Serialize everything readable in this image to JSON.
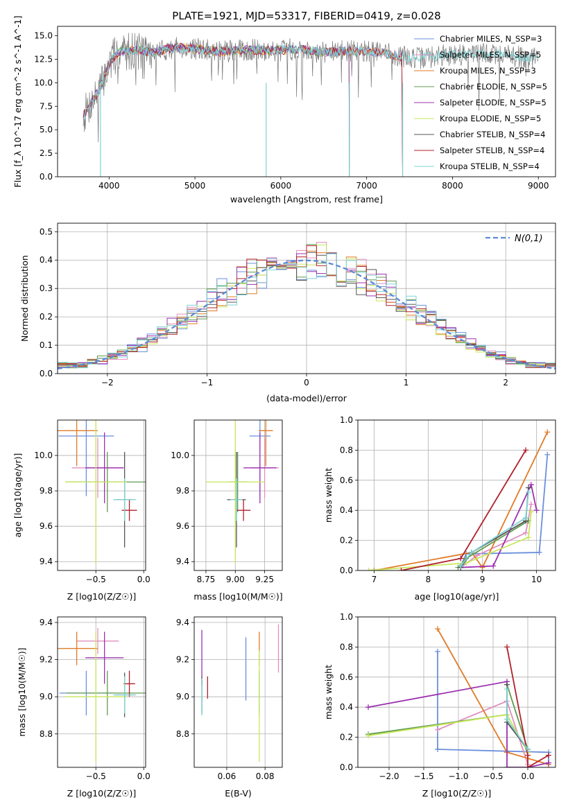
{
  "title": "PLATE=1921, MJD=53317, FIBERID=0419, z=0.028",
  "series_colors": [
    "#6a8fdc",
    "#e08fbf",
    "#e07a26",
    "#5f9a4f",
    "#9b30b0",
    "#c8e85a",
    "#555555",
    "#b0202a",
    "#7fd3d3"
  ],
  "legend_labels": [
    "Chabrier MILES, N_SSP=3",
    "Salpeter MILES, N_SSP=5",
    "Kroupa MILES, N_SSP=3",
    "Chabrier ELODIE, N_SSP=5",
    "Salpeter ELODIE, N_SSP=5",
    "Kroupa ELODIE, N_SSP=5",
    "Chabrier STELIB, N_SSP=4",
    "Salpeter STELIB, N_SSP=4",
    "Kroupa STELIB, N_SSP=4"
  ],
  "chart_data": [
    {
      "id": "spectrum",
      "type": "line",
      "xlabel": "wavelength [Angstrom, rest frame]",
      "ylabel": "Flux [f_λ 10^-17 erg cm^-2 s^-1 A^-1]",
      "xlim": [
        3400,
        9200
      ],
      "ylim": [
        0,
        16
      ],
      "xticks": [
        4000,
        5000,
        6000,
        7000,
        8000,
        9000
      ],
      "yticks": [
        0.0,
        2.5,
        5.0,
        7.5,
        10.0,
        12.5,
        15.0
      ],
      "legend_position": "top-right",
      "data_x": [
        3700,
        3800,
        3900,
        4000,
        4100,
        4300,
        4500,
        4800,
        5000,
        5300,
        5600,
        5900,
        6200,
        6500,
        6800,
        7000,
        7200,
        7400,
        7600,
        7800,
        8000,
        8300,
        8600,
        8800,
        9000
      ],
      "data_y": [
        6.5,
        8.0,
        9.5,
        12.0,
        13.2,
        13.5,
        13.2,
        13.8,
        13.6,
        13.3,
        13.5,
        13.4,
        13.6,
        13.2,
        13.4,
        13.3,
        13.2,
        12.8,
        12.6,
        12.8,
        13.0,
        13.1,
        13.0,
        12.7,
        12.6
      ],
      "model_end_wavelength": [
        7420,
        7420,
        7420,
        6800,
        6800,
        6800,
        9000,
        7420,
        9000
      ],
      "drop_lines": [
        3900,
        5830,
        6800,
        7420
      ]
    },
    {
      "id": "residuals",
      "type": "histogram",
      "xlabel": "(data-model)/error",
      "ylabel": "Normed distribution",
      "xlim": [
        -2.5,
        2.5
      ],
      "ylim": [
        0,
        0.53
      ],
      "xticks": [
        -2,
        -1,
        0,
        1,
        2
      ],
      "yticks": [
        0.0,
        0.1,
        0.2,
        0.3,
        0.4,
        0.5
      ],
      "bin_width": 0.1,
      "gaussian_label": "N(0,1)",
      "legend_position": "top-right"
    },
    {
      "id": "age_vs_Z",
      "type": "errorbar",
      "xlabel": "Z [log10(Z/Z☉)]",
      "ylabel": "age [log10(age/yr)]",
      "xlim": [
        -0.9,
        0.02
      ],
      "ylim": [
        9.35,
        10.2
      ],
      "xticks": [
        -0.5,
        0.0
      ],
      "yticks": [
        9.4,
        9.6,
        9.8,
        10.0
      ],
      "points": [
        {
          "x": -0.6,
          "y": 10.11,
          "xerr": 0.29,
          "yerr": 0.34
        },
        {
          "x": -0.48,
          "y": 9.93,
          "xerr": 0.27,
          "yerr": 0.17
        },
        {
          "x": -0.7,
          "y": 10.14,
          "xerr": 0.22,
          "yerr": 0.2
        },
        {
          "x": -0.38,
          "y": 9.85,
          "xerr": 0.44,
          "yerr": 0.17
        },
        {
          "x": -0.41,
          "y": 9.93,
          "xerr": 0.2,
          "yerr": 0.2
        },
        {
          "x": -0.5,
          "y": 9.85,
          "xerr": 0.32,
          "yerr": 0.46
        },
        {
          "x": -0.2,
          "y": 9.75,
          "xerr": 0.1,
          "yerr": 0.27
        },
        {
          "x": -0.15,
          "y": 9.69,
          "xerr": 0.08,
          "yerr": 0.06
        },
        {
          "x": -0.2,
          "y": 9.75,
          "xerr": 0.12,
          "yerr": 0.12
        }
      ]
    },
    {
      "id": "age_vs_mass",
      "type": "errorbar",
      "xlabel": "mass [log10(M/M☉)]",
      "ylabel": "",
      "xlim": [
        8.65,
        9.4
      ],
      "ylim": [
        9.35,
        10.2
      ],
      "xticks": [
        8.75,
        9.0,
        9.25
      ],
      "yticks": [
        9.4,
        9.6,
        9.8,
        10.0
      ],
      "points": [
        {
          "x": 9.21,
          "y": 10.11,
          "xerr": 0.09,
          "yerr": 0.34
        },
        {
          "x": 9.25,
          "y": 9.93,
          "xerr": 0.12,
          "yerr": 0.17
        },
        {
          "x": 9.26,
          "y": 10.14,
          "xerr": 0.06,
          "yerr": 0.2
        },
        {
          "x": 9.02,
          "y": 9.85,
          "xerr": 0.08,
          "yerr": 0.17
        },
        {
          "x": 9.21,
          "y": 9.93,
          "xerr": 0.14,
          "yerr": 0.2
        },
        {
          "x": 9.0,
          "y": 9.85,
          "xerr": 0.25,
          "yerr": 0.46
        },
        {
          "x": 9.01,
          "y": 9.75,
          "xerr": 0.08,
          "yerr": 0.27
        },
        {
          "x": 9.07,
          "y": 9.69,
          "xerr": 0.06,
          "yerr": 0.06
        },
        {
          "x": 9.01,
          "y": 9.75,
          "xerr": 0.05,
          "yerr": 0.12
        }
      ]
    },
    {
      "id": "weight_vs_age",
      "type": "line",
      "xlabel": "age [log10(age/yr)]",
      "ylabel": "mass weight",
      "xlim": [
        6.7,
        10.35
      ],
      "ylim": [
        0,
        1.0
      ],
      "xticks": [
        7,
        8,
        9,
        10
      ],
      "yticks": [
        0.0,
        0.2,
        0.4,
        0.6,
        0.8,
        1.0
      ],
      "series": [
        {
          "x": [
            8.6,
            8.7,
            10.05,
            10.2
          ],
          "y": [
            0.03,
            0.11,
            0.12,
            0.77
          ]
        },
        {
          "x": [
            8.6,
            8.9,
            9.8,
            9.9
          ],
          "y": [
            0.02,
            0.1,
            0.25,
            0.44
          ]
        },
        {
          "x": [
            7.0,
            8.8,
            9.0,
            10.2
          ],
          "y": [
            0.0,
            0.12,
            0.02,
            0.92
          ]
        },
        {
          "x": [
            8.55,
            8.7,
            9.85
          ],
          "y": [
            0.02,
            0.08,
            0.33
          ]
        },
        {
          "x": [
            8.6,
            9.2,
            9.9,
            10.0
          ],
          "y": [
            0.02,
            0.03,
            0.57,
            0.4
          ]
        },
        {
          "x": [
            6.9,
            8.7,
            9.85,
            9.9
          ],
          "y": [
            0.0,
            0.05,
            0.22,
            0.39
          ]
        },
        {
          "x": [
            8.6,
            8.8,
            9.8,
            9.85
          ],
          "y": [
            0.02,
            0.12,
            0.33,
            0.55
          ]
        },
        {
          "x": [
            7.5,
            8.6,
            9.8
          ],
          "y": [
            0.0,
            0.08,
            0.8
          ]
        },
        {
          "x": [
            8.6,
            8.8,
            9.8,
            9.85
          ],
          "y": [
            0.03,
            0.12,
            0.35,
            0.52
          ]
        }
      ]
    },
    {
      "id": "mass_vs_Z",
      "type": "errorbar",
      "xlabel": "Z [log10(Z/Z☉)]",
      "ylabel": "mass [log10(M/M☉)]",
      "xlim": [
        -0.9,
        0.02
      ],
      "ylim": [
        8.62,
        9.43
      ],
      "xticks": [
        -0.5,
        0.0
      ],
      "yticks": [
        8.8,
        9.0,
        9.2,
        9.4
      ],
      "points": [
        {
          "x": -0.6,
          "y": 9.02,
          "xerr": 0.28,
          "yerr": 0.12
        },
        {
          "x": -0.48,
          "y": 9.3,
          "xerr": 0.22,
          "yerr": 0.07
        },
        {
          "x": -0.7,
          "y": 9.26,
          "xerr": 0.22,
          "yerr": 0.09
        },
        {
          "x": -0.38,
          "y": 9.02,
          "xerr": 0.43,
          "yerr": 0.12
        },
        {
          "x": -0.41,
          "y": 9.21,
          "xerr": 0.2,
          "yerr": 0.14
        },
        {
          "x": -0.5,
          "y": 9.0,
          "xerr": 0.32,
          "yerr": 0.35
        },
        {
          "x": -0.2,
          "y": 9.01,
          "xerr": 0.1,
          "yerr": 0.12
        },
        {
          "x": -0.15,
          "y": 9.07,
          "xerr": 0.06,
          "yerr": 0.07
        },
        {
          "x": -0.2,
          "y": 9.01,
          "xerr": 0.12,
          "yerr": 0.1
        }
      ]
    },
    {
      "id": "mass_vs_EBV",
      "type": "errorbar",
      "xlabel": "E(B-V)",
      "ylabel": "",
      "xlim": [
        0.043,
        0.089
      ],
      "ylim": [
        8.62,
        9.43
      ],
      "xticks": [
        0.06,
        0.08
      ],
      "yticks": [
        8.8,
        9.0,
        9.2,
        9.4
      ],
      "points": [
        {
          "x": 0.07,
          "y": 9.15,
          "xerr": 0.0,
          "yerr": 0.17
        },
        {
          "x": 0.087,
          "y": 9.26,
          "xerr": 0.0,
          "yerr": 0.13
        },
        {
          "x": 0.077,
          "y": 9.26,
          "xerr": 0.0,
          "yerr": 0.09
        },
        {
          "x": 0.077,
          "y": 9.02,
          "xerr": 0.0,
          "yerr": 0.12
        },
        {
          "x": 0.047,
          "y": 9.21,
          "xerr": 0.0,
          "yerr": 0.15
        },
        {
          "x": 0.077,
          "y": 8.95,
          "xerr": 0.0,
          "yerr": 0.3
        },
        {
          "x": 0.047,
          "y": 9.01,
          "xerr": 0.0,
          "yerr": 0.1
        },
        {
          "x": 0.05,
          "y": 9.05,
          "xerr": 0.0,
          "yerr": 0.06
        },
        {
          "x": 0.047,
          "y": 9.0,
          "xerr": 0.0,
          "yerr": 0.1
        }
      ]
    },
    {
      "id": "weight_vs_Z",
      "type": "line",
      "xlabel": "Z [log10(Z/Z☉)]",
      "ylabel": "mass weight",
      "xlim": [
        -2.45,
        0.4
      ],
      "ylim": [
        0,
        1.0
      ],
      "xticks": [
        -2.0,
        -1.5,
        -1.0,
        -0.5,
        0.0
      ],
      "yticks": [
        0.0,
        0.2,
        0.4,
        0.6,
        0.8,
        1.0
      ],
      "series": [
        {
          "x": [
            -1.3,
            -1.3,
            0.3,
            0.3
          ],
          "y": [
            0.77,
            0.12,
            0.1,
            0.02
          ]
        },
        {
          "x": [
            -1.3,
            -0.3,
            0.0
          ],
          "y": [
            0.25,
            0.44,
            0.02
          ]
        },
        {
          "x": [
            -1.3,
            -0.3,
            0.3
          ],
          "y": [
            0.92,
            0.1,
            0.02
          ]
        },
        {
          "x": [
            -2.3,
            -0.3,
            -0.3,
            0.0
          ],
          "y": [
            0.22,
            0.35,
            0.55,
            0.12
          ]
        },
        {
          "x": [
            -2.3,
            -0.3,
            -0.3,
            0.0,
            0.3
          ],
          "y": [
            0.4,
            0.57,
            0.0,
            0.0,
            0.03
          ]
        },
        {
          "x": [
            -2.3,
            -0.3,
            0.0
          ],
          "y": [
            0.21,
            0.35,
            0.1
          ]
        },
        {
          "x": [
            -0.3,
            -0.3,
            0.0
          ],
          "y": [
            0.55,
            0.3,
            0.12
          ]
        },
        {
          "x": [
            -0.3,
            0.0,
            0.0,
            0.3
          ],
          "y": [
            0.8,
            0.08,
            0.0,
            0.08
          ]
        },
        {
          "x": [
            -0.3,
            -0.3,
            0.0
          ],
          "y": [
            0.52,
            0.32,
            0.12
          ]
        }
      ]
    }
  ]
}
